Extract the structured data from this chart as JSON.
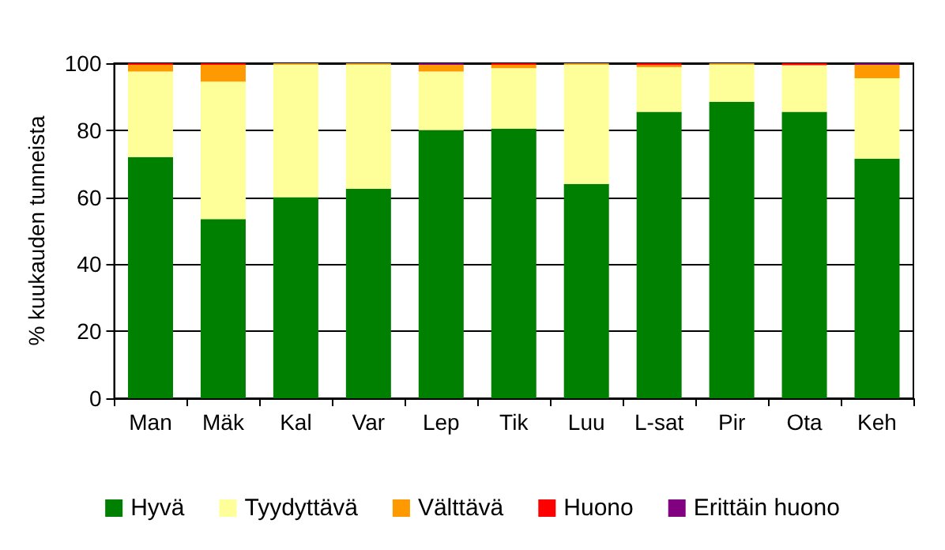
{
  "chart_data": {
    "type": "bar",
    "stacked": true,
    "ylabel": "% kuukauden tunneista",
    "categories": [
      "Man",
      "Mäk",
      "Kal",
      "Var",
      "Lep",
      "Tik",
      "Luu",
      "L-sat",
      "Pir",
      "Ota",
      "Keh"
    ],
    "ylim": [
      0,
      100
    ],
    "yticks": [
      0,
      20,
      40,
      60,
      80,
      100
    ],
    "grid": "y",
    "legend": "bottom",
    "series": [
      {
        "name": "Hyvä",
        "color": "#008000",
        "values": [
          72,
          53.5,
          60,
          62.5,
          80,
          80.5,
          64,
          85.5,
          88.5,
          85.5,
          71.5
        ]
      },
      {
        "name": "Tyydyttävä",
        "color": "#ffff99",
        "values": [
          25.5,
          41,
          39.7,
          37.2,
          17.5,
          18,
          35.7,
          13.3,
          11.2,
          13.9,
          24
        ]
      },
      {
        "name": "Välttävä",
        "color": "#ff9900",
        "values": [
          2,
          5,
          0.3,
          0.3,
          2,
          1,
          0.3,
          0.6,
          0.3,
          0,
          4
        ]
      },
      {
        "name": "Huono",
        "color": "#ff0000",
        "values": [
          0.5,
          0.5,
          0,
          0,
          0,
          0.5,
          0,
          0.6,
          0,
          0.6,
          0
        ]
      },
      {
        "name": "Erittäin huono",
        "color": "#800080",
        "values": [
          0,
          0,
          0,
          0,
          0.5,
          0,
          0,
          0,
          0,
          0,
          0.5
        ]
      }
    ]
  }
}
